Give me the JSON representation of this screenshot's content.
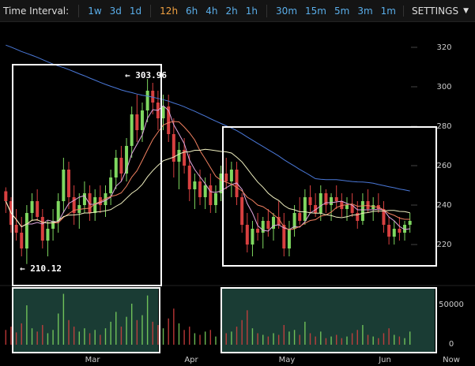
{
  "toolbar": {
    "label": "Time Interval:",
    "groups": [
      [
        "1w",
        "3d",
        "1d"
      ],
      [
        "12h",
        "6h",
        "4h",
        "2h",
        "1h"
      ],
      [
        "30m",
        "15m",
        "5m",
        "3m",
        "1m"
      ]
    ],
    "active": "12h",
    "settings_label": "SETTINGS"
  },
  "chart_data": {
    "type": "candlestick",
    "price_axis": {
      "ticks": [
        "320",
        "300",
        "280",
        "260",
        "240",
        "220"
      ],
      "range": [
        205,
        325
      ]
    },
    "volume_axis": {
      "ticks": [
        "50000",
        "0"
      ],
      "range": [
        0,
        80000
      ]
    },
    "x_axis": {
      "ticks": [
        "Mar",
        "Apr",
        "May",
        "Jun",
        "Now"
      ]
    },
    "annotations": {
      "high": "← 303.96",
      "low": "← 210.12"
    },
    "candles": [
      [
        247,
        249,
        236,
        242
      ],
      [
        242,
        244,
        226,
        230
      ],
      [
        230,
        238,
        222,
        226
      ],
      [
        226,
        234,
        214,
        218
      ],
      [
        218,
        240,
        210.12,
        236
      ],
      [
        236,
        246,
        232,
        242
      ],
      [
        242,
        248,
        232,
        234
      ],
      [
        234,
        238,
        218,
        222
      ],
      [
        222,
        232,
        214,
        228
      ],
      [
        228,
        238,
        222,
        232
      ],
      [
        232,
        246,
        226,
        242
      ],
      [
        242,
        264,
        236,
        258
      ],
      [
        258,
        262,
        238,
        244
      ],
      [
        244,
        250,
        230,
        236
      ],
      [
        236,
        246,
        228,
        240
      ],
      [
        240,
        252,
        236,
        246
      ],
      [
        246,
        250,
        232,
        236
      ],
      [
        236,
        248,
        232,
        244
      ],
      [
        244,
        250,
        236,
        240
      ],
      [
        240,
        250,
        234,
        246
      ],
      [
        246,
        258,
        240,
        254
      ],
      [
        254,
        268,
        248,
        264
      ],
      [
        264,
        270,
        252,
        256
      ],
      [
        256,
        274,
        252,
        270
      ],
      [
        270,
        290,
        264,
        286
      ],
      [
        286,
        296,
        272,
        278
      ],
      [
        278,
        292,
        272,
        288
      ],
      [
        288,
        303.96,
        282,
        298
      ],
      [
        298,
        302,
        286,
        292
      ],
      [
        292,
        298,
        278,
        284
      ],
      [
        284,
        296,
        278,
        290
      ],
      [
        290,
        296,
        272,
        276
      ],
      [
        276,
        284,
        254,
        262
      ],
      [
        262,
        272,
        248,
        268
      ],
      [
        268,
        274,
        256,
        260
      ],
      [
        260,
        266,
        242,
        248
      ],
      [
        248,
        256,
        238,
        252
      ],
      [
        252,
        258,
        240,
        244
      ],
      [
        244,
        254,
        238,
        250
      ],
      [
        250,
        256,
        236,
        240
      ],
      [
        240,
        250,
        236,
        246
      ],
      [
        246,
        260,
        242,
        256
      ],
      [
        256,
        264,
        248,
        252
      ],
      [
        252,
        262,
        244,
        258
      ],
      [
        258,
        262,
        240,
        244
      ],
      [
        244,
        246,
        226,
        230
      ],
      [
        230,
        236,
        216,
        220
      ],
      [
        220,
        232,
        214,
        228
      ],
      [
        228,
        236,
        222,
        226
      ],
      [
        226,
        234,
        218,
        232
      ],
      [
        232,
        238,
        224,
        228
      ],
      [
        228,
        236,
        222,
        234
      ],
      [
        234,
        242,
        228,
        230
      ],
      [
        230,
        236,
        214,
        218
      ],
      [
        218,
        232,
        214,
        228
      ],
      [
        228,
        240,
        224,
        236
      ],
      [
        236,
        244,
        230,
        232
      ],
      [
        232,
        248,
        230,
        244
      ],
      [
        244,
        250,
        236,
        240
      ],
      [
        240,
        246,
        234,
        236
      ],
      [
        236,
        250,
        232,
        246
      ],
      [
        246,
        248,
        236,
        240
      ],
      [
        240,
        246,
        232,
        244
      ],
      [
        244,
        250,
        238,
        242
      ],
      [
        242,
        246,
        234,
        238
      ],
      [
        238,
        244,
        232,
        240
      ],
      [
        240,
        246,
        234,
        236
      ],
      [
        236,
        242,
        228,
        232
      ],
      [
        232,
        246,
        230,
        242
      ],
      [
        242,
        248,
        236,
        238
      ],
      [
        238,
        244,
        232,
        240
      ],
      [
        240,
        246,
        236,
        238
      ],
      [
        238,
        242,
        226,
        230
      ],
      [
        230,
        234,
        220,
        224
      ],
      [
        224,
        232,
        220,
        228
      ],
      [
        228,
        234,
        222,
        226
      ],
      [
        226,
        232,
        222,
        230
      ],
      [
        230,
        236,
        226,
        232
      ]
    ],
    "volumes": [
      18000,
      22000,
      15000,
      26000,
      48000,
      20000,
      16000,
      24000,
      14000,
      18000,
      38000,
      62000,
      30000,
      22000,
      16000,
      20000,
      14000,
      18000,
      12000,
      20000,
      28000,
      40000,
      22000,
      34000,
      50000,
      30000,
      36000,
      60000,
      28000,
      24000,
      20000,
      32000,
      44000,
      26000,
      18000,
      22000,
      14000,
      12000,
      16000,
      18000,
      10000,
      20000,
      14000,
      16000,
      22000,
      30000,
      42000,
      20000,
      14000,
      12000,
      10000,
      14000,
      12000,
      24000,
      16000,
      18000,
      12000,
      28000,
      14000,
      10000,
      16000,
      8000,
      10000,
      12000,
      8000,
      10000,
      14000,
      18000,
      24000,
      12000,
      10000,
      8000,
      14000,
      20000,
      12000,
      10000,
      8000,
      16000
    ],
    "moving_averages": [
      {
        "color": "#e0a8e0",
        "period": 5
      },
      {
        "color": "#f08060",
        "period": 10
      },
      {
        "color": "#f0f0c0",
        "period": 20
      },
      {
        "color": "#4a78d8",
        "period": 60,
        "baseline": 322
      }
    ],
    "colors": {
      "up": "#7fd860",
      "down": "#d84040",
      "volume_highlight": "#1a3c34",
      "box": "#ffffff"
    }
  }
}
